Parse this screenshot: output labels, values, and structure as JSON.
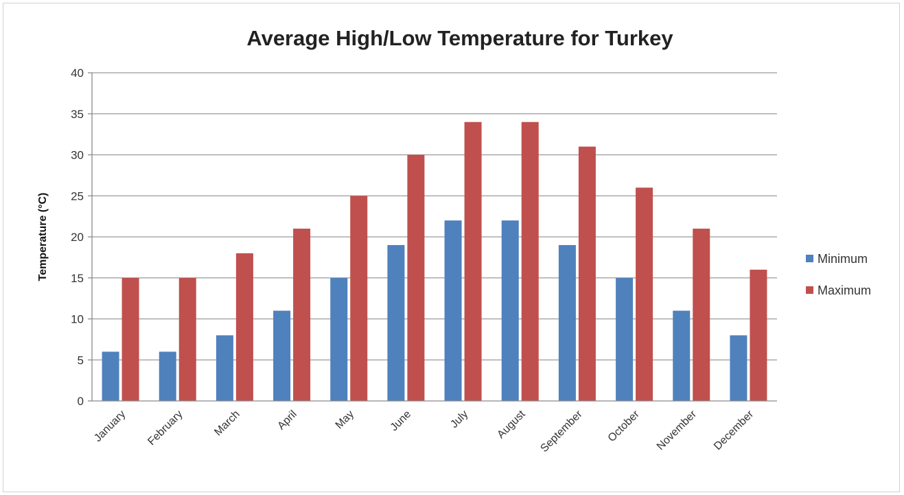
{
  "chart_data": {
    "type": "bar",
    "title": "Average High/Low Temperature for Turkey",
    "xlabel": "",
    "ylabel": "Temperature (°C)",
    "ylim": [
      0,
      40
    ],
    "yticks": [
      0,
      5,
      10,
      15,
      20,
      25,
      30,
      35,
      40
    ],
    "grid": true,
    "legend_position": "right",
    "categories": [
      "January",
      "February",
      "March",
      "April",
      "May",
      "June",
      "July",
      "August",
      "September",
      "October",
      "November",
      "December"
    ],
    "series": [
      {
        "name": "Minimum",
        "color": "#4f81bd",
        "values": [
          6,
          6,
          8,
          11,
          15,
          19,
          22,
          22,
          19,
          15,
          11,
          8
        ]
      },
      {
        "name": "Maximum",
        "color": "#c0504d",
        "values": [
          15,
          15,
          18,
          21,
          25,
          30,
          34,
          34,
          31,
          26,
          21,
          16
        ]
      }
    ]
  }
}
